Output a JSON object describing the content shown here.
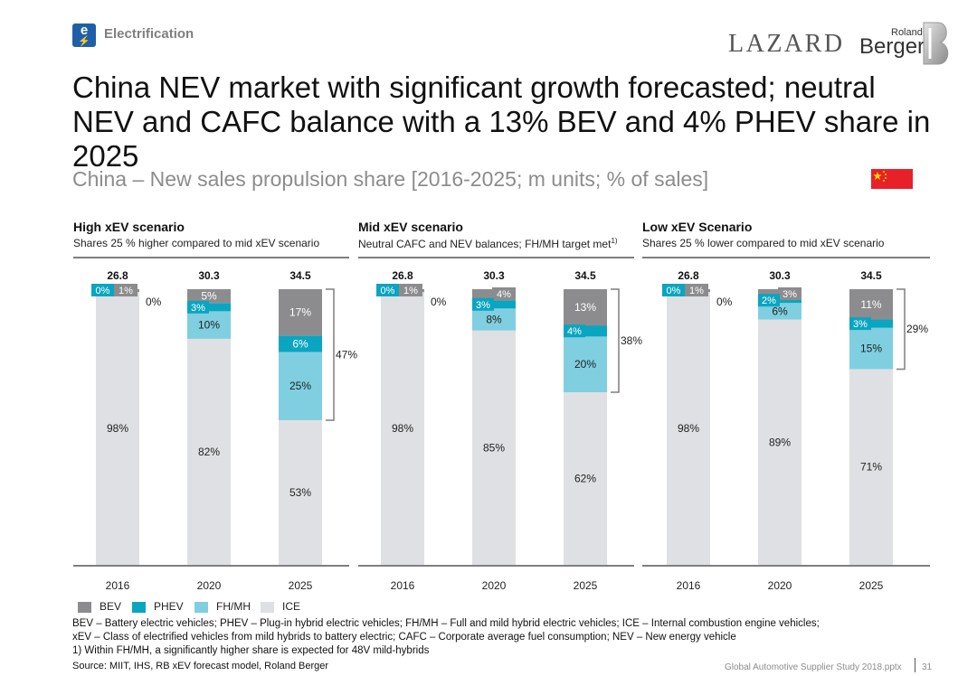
{
  "header": {
    "section_icon": "e",
    "section_label": "Electrification",
    "logo_lazard": "LAZARD",
    "logo_roland": "Roland",
    "logo_berger": "Berger",
    "title": "China NEV market with significant growth forecasted; neutral NEV and CAFC balance with a 13% BEV and 4% PHEV share in 2025",
    "subtitle": "China – New sales propulsion share [2016-2025; m units; % of sales]",
    "flag_icon": "china-flag-icon"
  },
  "scenarios": [
    {
      "title": "High xEV scenario",
      "subtitle": "Shares 25 % higher compared to mid xEV scenario",
      "sup": ""
    },
    {
      "title": "Mid xEV scenario",
      "subtitle": "Neutral CAFC and NEV balances; FH/MH target met",
      "sup": "1)"
    },
    {
      "title": "Low xEV Scenario",
      "subtitle": "Shares 25 % lower compared to mid xEV scenario",
      "sup": ""
    }
  ],
  "legend": [
    {
      "label": "BEV",
      "color": "#8c8c8f"
    },
    {
      "label": "PHEV",
      "color": "#0aa5c0"
    },
    {
      "label": "FH/MH",
      "color": "#7fcfe0"
    },
    {
      "label": "ICE",
      "color": "#dfe0e3"
    }
  ],
  "chart_data": [
    {
      "type": "bar",
      "stacked": true,
      "normalized": true,
      "title": "High xEV scenario",
      "categories": [
        "2016",
        "2020",
        "2025"
      ],
      "totals": [
        "26.8",
        "30.3",
        "34.5"
      ],
      "series": [
        {
          "name": "ICE",
          "values": [
            98,
            82,
            53
          ]
        },
        {
          "name": "FH/MH",
          "values": [
            0,
            10,
            25
          ]
        },
        {
          "name": "PHEV",
          "values": [
            0,
            3,
            6
          ]
        },
        {
          "name": "BEV",
          "values": [
            1,
            5,
            17
          ]
        }
      ],
      "labels": {
        "ICE": [
          "98%",
          "82%",
          "53%"
        ],
        "FH/MH": [
          "0%",
          "10%",
          "25%"
        ],
        "PHEV": [
          "0%",
          "3%",
          "6%"
        ],
        "BEV": [
          "1%",
          "5%",
          "17%"
        ]
      },
      "xev_share_2025": "47%",
      "ylim": [
        0,
        100
      ]
    },
    {
      "type": "bar",
      "stacked": true,
      "normalized": true,
      "title": "Mid xEV scenario",
      "categories": [
        "2016",
        "2020",
        "2025"
      ],
      "totals": [
        "26.8",
        "30.3",
        "34.5"
      ],
      "series": [
        {
          "name": "ICE",
          "values": [
            98,
            85,
            62
          ]
        },
        {
          "name": "FH/MH",
          "values": [
            0,
            8,
            20
          ]
        },
        {
          "name": "PHEV",
          "values": [
            0,
            3,
            4
          ]
        },
        {
          "name": "BEV",
          "values": [
            1,
            4,
            13
          ]
        }
      ],
      "labels": {
        "ICE": [
          "98%",
          "85%",
          "62%"
        ],
        "FH/MH": [
          "0%",
          "8%",
          "20%"
        ],
        "PHEV": [
          "0%",
          "3%",
          "4%"
        ],
        "BEV": [
          "1%",
          "4%",
          "13%"
        ]
      },
      "xev_share_2025": "38%",
      "ylim": [
        0,
        100
      ]
    },
    {
      "type": "bar",
      "stacked": true,
      "normalized": true,
      "title": "Low xEV Scenario",
      "categories": [
        "2016",
        "2020",
        "2025"
      ],
      "totals": [
        "26.8",
        "30.3",
        "34.5"
      ],
      "series": [
        {
          "name": "ICE",
          "values": [
            98,
            89,
            71
          ]
        },
        {
          "name": "FH/MH",
          "values": [
            0,
            6,
            15
          ]
        },
        {
          "name": "PHEV",
          "values": [
            0,
            2,
            3
          ]
        },
        {
          "name": "BEV",
          "values": [
            1,
            3,
            11
          ]
        }
      ],
      "labels": {
        "ICE": [
          "98%",
          "89%",
          "71%"
        ],
        "FH/MH": [
          "0%",
          "6%",
          "15%"
        ],
        "PHEV": [
          "0%",
          "2%",
          "3%"
        ],
        "BEV": [
          "1%",
          "3%",
          "11%"
        ]
      },
      "xev_share_2025": "29%",
      "ylim": [
        0,
        100
      ]
    }
  ],
  "footnotes": {
    "line1": "BEV – Battery electric vehicles; PHEV – Plug-in hybrid electric vehicles; FH/MH – Full and mild hybrid electric vehicles; ICE – Internal combustion engine vehicles;",
    "line2": "xEV – Class of electrified vehicles from mild hybrids to battery electric; CAFC – Corporate average fuel consumption; NEV – New energy vehicle",
    "line3": "1) Within FH/MH, a significantly higher share is expected for 48V mild-hybrids",
    "source": "Source: MIIT, IHS, RB xEV forecast model, Roland Berger"
  },
  "footer": {
    "file": "Global Automotive Supplier Study 2018.pptx",
    "page": "31"
  }
}
